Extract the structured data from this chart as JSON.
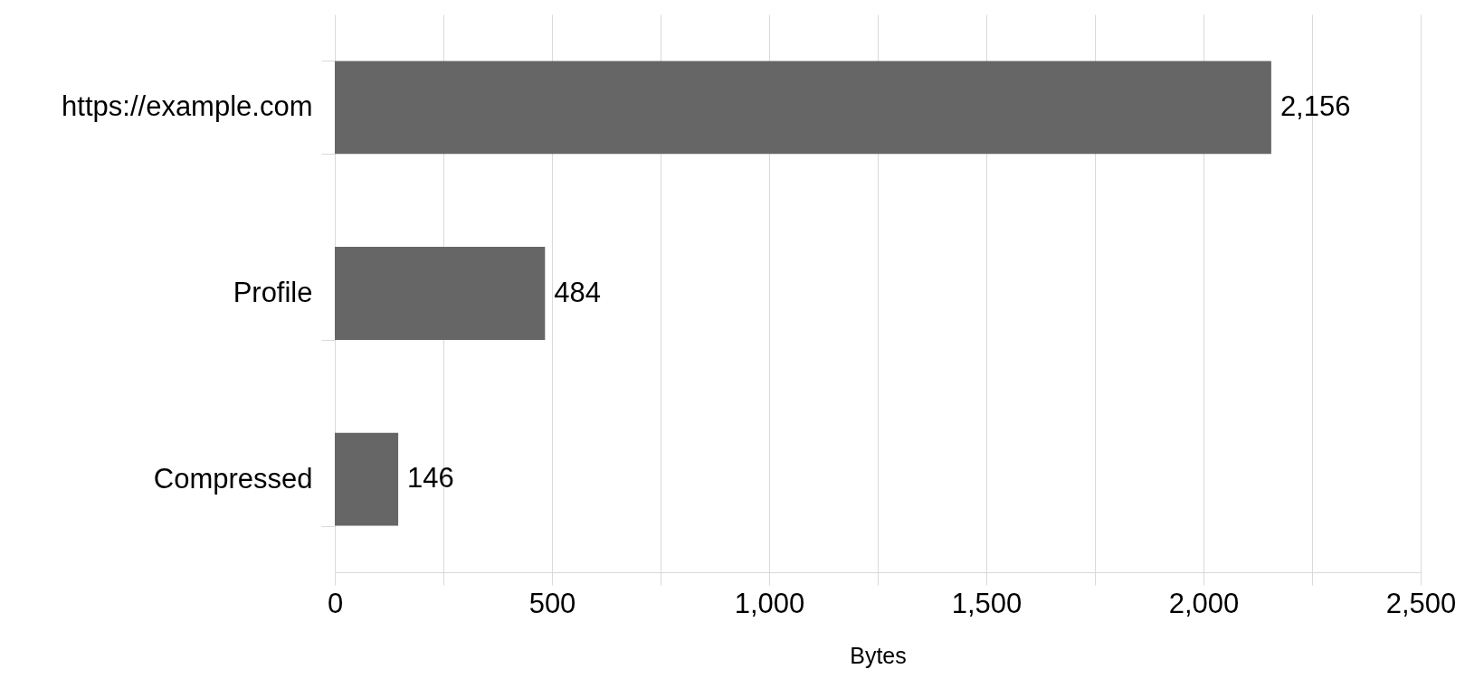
{
  "chart_data": {
    "type": "bar",
    "orientation": "horizontal",
    "xlabel": "Bytes",
    "categories": [
      "https://example.com",
      "Profile",
      "Compressed"
    ],
    "values": [
      2156,
      484,
      146
    ],
    "color": "#666666",
    "value_labels": [
      "2,156",
      "484",
      "146"
    ],
    "xlim": [
      0,
      2500
    ],
    "xticks": [
      0,
      {
        "value": 250,
        "label": null
      },
      500,
      {
        "value": 750,
        "label": null
      },
      {
        "value": 1000,
        "label": "1,000"
      },
      {
        "value": 1250,
        "label": null
      },
      {
        "value": 1500,
        "label": "1,500"
      },
      {
        "value": 1750,
        "label": null
      },
      {
        "value": 2000,
        "label": "2,000"
      },
      {
        "value": 2250,
        "label": null
      },
      {
        "value": 2500,
        "label": "2,500"
      }
    ],
    "grid": "x"
  }
}
